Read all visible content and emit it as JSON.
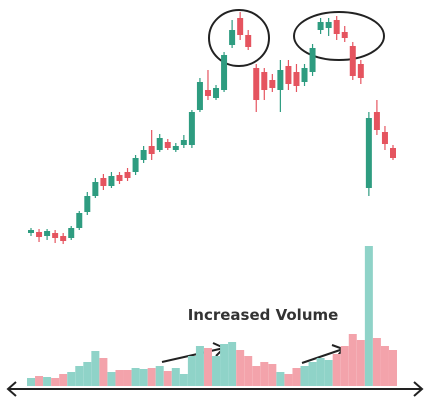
{
  "chart_data": {
    "type": "candlestick",
    "annotation": "Increased Volume",
    "up_color": "#2e9c80",
    "down_color": "#e5545f",
    "up_volume_color": "#8fd3c8",
    "down_volume_color": "#f3a3ab",
    "ylim": [
      0,
      300
    ],
    "y2lim": [
      0,
      150
    ],
    "open": [
      67,
      68,
      64,
      67,
      64,
      62,
      72,
      88,
      104,
      122,
      114,
      125,
      128,
      128,
      140,
      154,
      150,
      158,
      150,
      155,
      155,
      190,
      210,
      202,
      210,
      255,
      282,
      265,
      232,
      228,
      220,
      210,
      234,
      228,
      218,
      228,
      270,
      272,
      280,
      268,
      254,
      236,
      112,
      188,
      168,
      152
    ],
    "high": [
      72,
      71,
      71,
      70,
      67,
      74,
      89,
      108,
      122,
      126,
      128,
      128,
      132,
      145,
      154,
      170,
      166,
      161,
      157,
      165,
      190,
      222,
      230,
      215,
      248,
      280,
      288,
      270,
      236,
      232,
      226,
      240,
      240,
      236,
      236,
      256,
      282,
      282,
      284,
      274,
      258,
      240,
      188,
      200,
      174,
      155
    ],
    "low": [
      64,
      58,
      60,
      57,
      56,
      60,
      70,
      85,
      102,
      110,
      112,
      116,
      119,
      125,
      137,
      140,
      148,
      150,
      148,
      152,
      152,
      188,
      200,
      200,
      208,
      252,
      260,
      250,
      188,
      200,
      208,
      188,
      210,
      208,
      214,
      224,
      266,
      264,
      260,
      258,
      220,
      216,
      104,
      165,
      150,
      140
    ],
    "close": [
      70,
      63,
      69,
      62,
      59,
      72,
      87,
      104,
      118,
      114,
      124,
      119,
      122,
      142,
      150,
      146,
      162,
      152,
      154,
      160,
      188,
      218,
      204,
      212,
      245,
      270,
      265,
      253,
      200,
      210,
      212,
      230,
      216,
      214,
      232,
      252,
      278,
      278,
      266,
      262,
      224,
      222,
      182,
      170,
      156,
      142
    ],
    "volume": [
      8,
      10,
      9,
      8,
      12,
      14,
      20,
      24,
      35,
      28,
      14,
      16,
      16,
      18,
      17,
      18,
      20,
      15,
      18,
      12,
      30,
      40,
      38,
      30,
      42,
      44,
      36,
      30,
      20,
      24,
      22,
      14,
      12,
      18,
      20,
      24,
      28,
      26,
      32,
      40,
      52,
      46,
      140,
      48,
      40,
      36
    ]
  }
}
